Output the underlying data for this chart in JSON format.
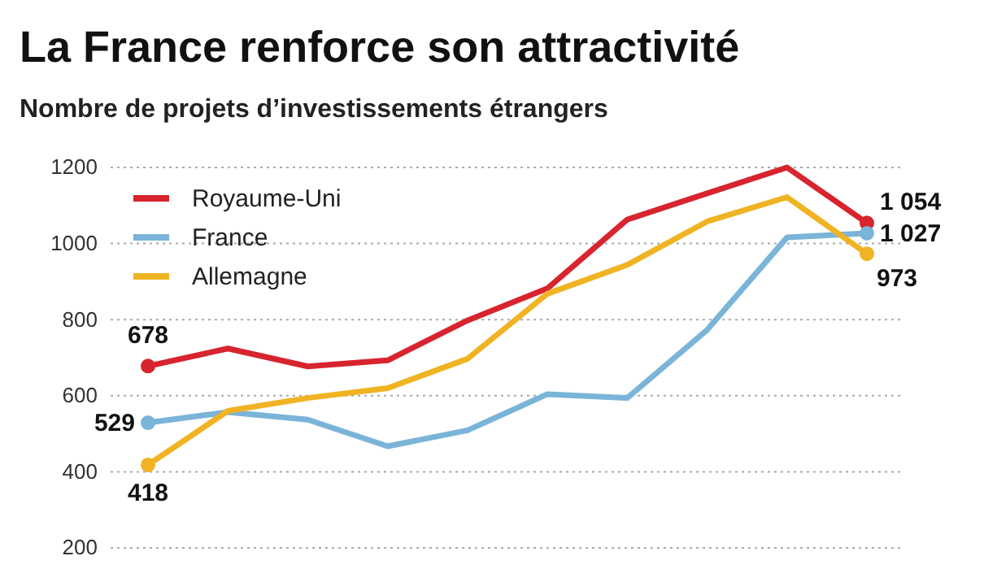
{
  "chart_data": {
    "type": "line",
    "title": "La France renforce son attractivité",
    "subtitle": "Nombre de projets d’investissements étrangers",
    "categories": [
      null,
      null,
      null,
      null,
      null,
      null,
      null,
      null,
      null,
      null
    ],
    "series": [
      {
        "name": "Royaume-Uni",
        "color": "#d7242e",
        "values": [
          678,
          724,
          677,
          693,
          798,
          882,
          1063,
          1132,
          1200,
          1054
        ],
        "value_labels": [
          "678",
          null,
          null,
          null,
          null,
          null,
          null,
          null,
          null,
          "1 054"
        ]
      },
      {
        "name": "France",
        "color": "#7ab4d8",
        "values": [
          529,
          557,
          537,
          467,
          509,
          604,
          594,
          773,
          1016,
          1027
        ],
        "value_labels": [
          "529",
          null,
          null,
          null,
          null,
          null,
          null,
          null,
          null,
          "1 027"
        ]
      },
      {
        "name": "Allemagne",
        "color": "#f0b323",
        "values": [
          418,
          560,
          594,
          620,
          697,
          868,
          944,
          1058,
          1122,
          973
        ],
        "value_labels": [
          "418",
          null,
          null,
          null,
          null,
          null,
          null,
          null,
          null,
          "973"
        ]
      }
    ],
    "ylim": [
      200,
      1200
    ],
    "yticks": [
      200,
      400,
      600,
      800,
      1000,
      1200
    ],
    "grid": "y",
    "legend": "top left",
    "line_style": "solid"
  }
}
